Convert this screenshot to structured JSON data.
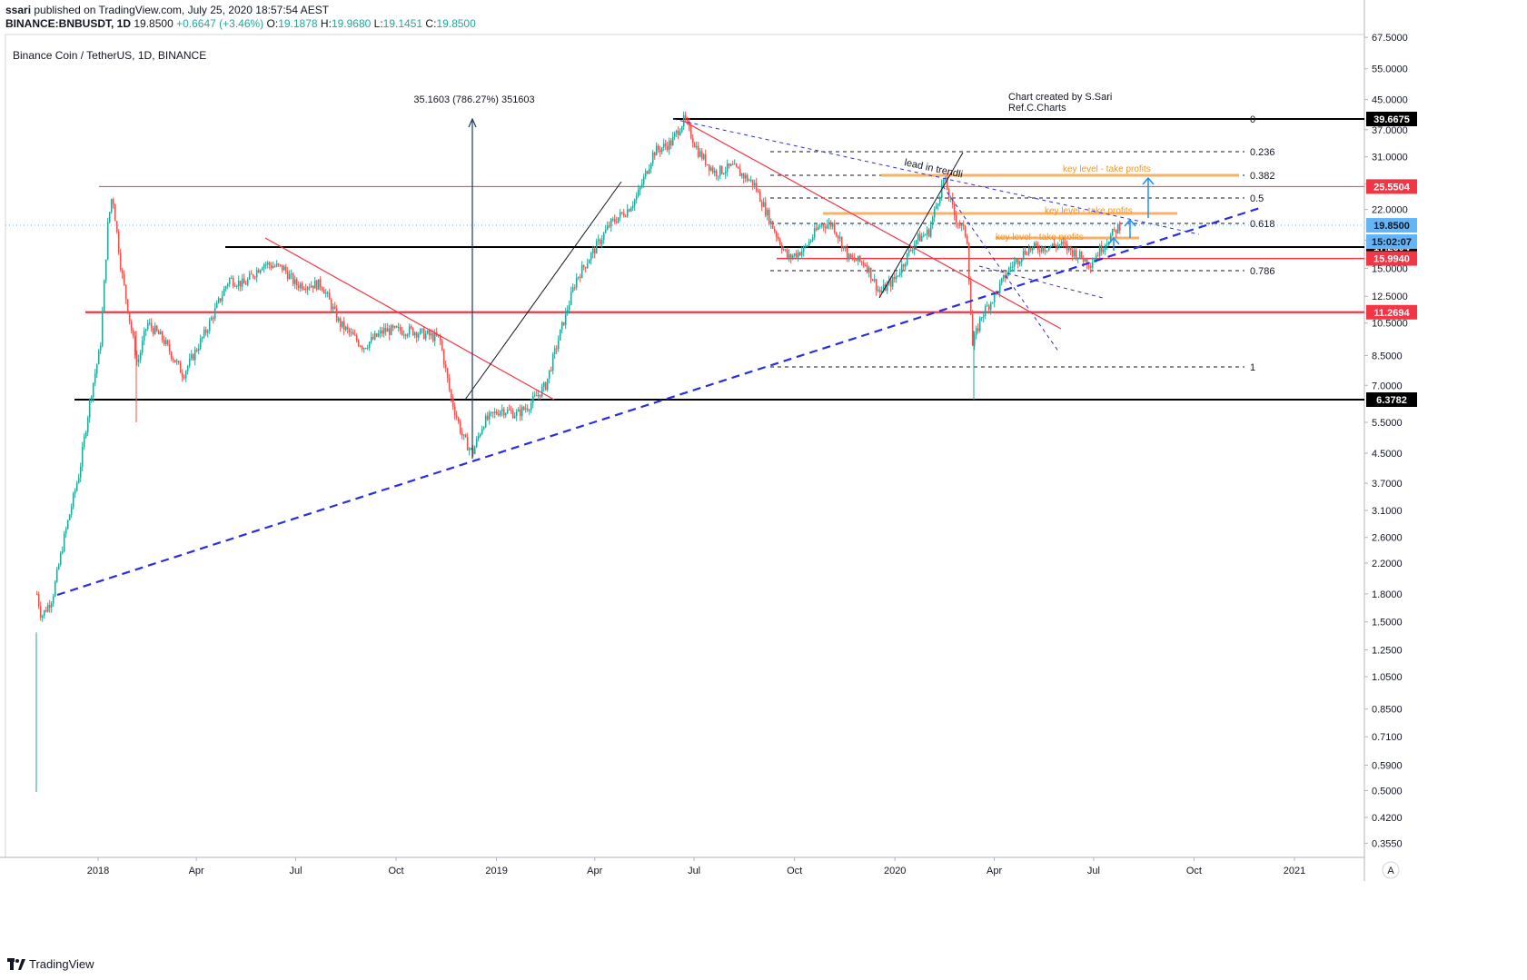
{
  "header": {
    "publisher_user": "ssari",
    "publisher_rest": " published on TradingView.com, July 25, 2020 18:57:54 AEST",
    "symbol": "BINANCE:BNBUSDT, 1D",
    "price": "19.8500",
    "change": "+0.6647 (+3.46%)",
    "open_label": "O:",
    "open": "19.1878",
    "high_label": "H:",
    "high": "19.9680",
    "low_label": "L:",
    "low": "19.1451",
    "close_label": "C:",
    "close": "19.8500"
  },
  "chart_title": "Binance Coin / TetherUS, 1D, BINANCE",
  "footer": {
    "brand": "TradingView"
  },
  "colors": {
    "up": "#26a69a",
    "down": "#ef5350",
    "red_line": "#f23645",
    "blue_trend": "#2a2ee0",
    "orange": "#f7931a",
    "blue_arrow": "#1e90ff",
    "price_tag": "#64b5f6",
    "black_tag": "#000000",
    "red_tag": "#f23645"
  },
  "chart_data": {
    "type": "candlestick",
    "scale": "log",
    "y_ticks": [
      "67.5000",
      "55.0000",
      "45.0000",
      "37.0000",
      "31.0000",
      "26.0000",
      "22.0000",
      "18.0000",
      "15.0000",
      "12.5000",
      "10.5000",
      "8.5000",
      "7.0000",
      "5.5000",
      "4.5000",
      "3.7000",
      "3.1000",
      "2.6000",
      "2.2000",
      "1.8000",
      "1.5000",
      "1.2500",
      "1.0500",
      "0.8500",
      "0.7100",
      "0.5900",
      "0.5000",
      "0.4200",
      "0.3550"
    ],
    "x_ticks": [
      "2018",
      "Apr",
      "Jul",
      "Oct",
      "2019",
      "Apr",
      "Jul",
      "Oct",
      "2020",
      "Apr",
      "Jul",
      "Oct",
      "2021"
    ],
    "x_tick_dates": [
      "2018-01-01",
      "2018-04-01",
      "2018-07-01",
      "2018-10-01",
      "2019-01-01",
      "2019-04-01",
      "2019-07-01",
      "2019-10-01",
      "2020-01-01",
      "2020-04-01",
      "2020-07-01",
      "2020-10-01",
      "2021-01-01"
    ],
    "price_trend": [
      [
        "2017-11-06",
        1.8
      ],
      [
        "2017-11-10",
        1.55
      ],
      [
        "2017-11-20",
        1.75
      ],
      [
        "2017-12-01",
        2.6
      ],
      [
        "2017-12-15",
        4.0
      ],
      [
        "2017-12-25",
        6.5
      ],
      [
        "2018-01-03",
        9.0
      ],
      [
        "2018-01-10",
        20.0
      ],
      [
        "2018-01-14",
        24.5
      ],
      [
        "2018-01-22",
        15.0
      ],
      [
        "2018-02-06",
        8.0
      ],
      [
        "2018-02-15",
        10.5
      ],
      [
        "2018-03-01",
        9.5
      ],
      [
        "2018-03-20",
        7.5
      ],
      [
        "2018-04-10",
        10.0
      ],
      [
        "2018-05-01",
        14.0
      ],
      [
        "2018-05-15",
        13.5
      ],
      [
        "2018-06-01",
        15.5
      ],
      [
        "2018-06-20",
        15.0
      ],
      [
        "2018-07-01",
        13.5
      ],
      [
        "2018-07-25",
        13.5
      ],
      [
        "2018-08-10",
        10.5
      ],
      [
        "2018-09-01",
        9.0
      ],
      [
        "2018-09-20",
        10.0
      ],
      [
        "2018-10-15",
        10.0
      ],
      [
        "2018-11-10",
        9.5
      ],
      [
        "2018-11-20",
        6.5
      ],
      [
        "2018-12-01",
        5.0
      ],
      [
        "2018-12-10",
        4.5
      ],
      [
        "2018-12-20",
        5.5
      ],
      [
        "2019-01-05",
        6.0
      ],
      [
        "2019-01-20",
        5.8
      ],
      [
        "2019-02-01",
        6.2
      ],
      [
        "2019-02-15",
        7.0
      ],
      [
        "2019-03-01",
        10.0
      ],
      [
        "2019-03-15",
        14.0
      ],
      [
        "2019-04-01",
        17.0
      ],
      [
        "2019-04-15",
        20.0
      ],
      [
        "2019-05-01",
        22.0
      ],
      [
        "2019-05-10",
        24.0
      ],
      [
        "2019-05-25",
        32.0
      ],
      [
        "2019-06-10",
        34.0
      ],
      [
        "2019-06-22",
        39.6
      ],
      [
        "2019-07-05",
        32.0
      ],
      [
        "2019-07-20",
        28.0
      ],
      [
        "2019-08-05",
        29.0
      ],
      [
        "2019-08-25",
        26.0
      ],
      [
        "2019-09-10",
        20.0
      ],
      [
        "2019-09-25",
        16.0
      ],
      [
        "2019-10-10",
        17.0
      ],
      [
        "2019-10-25",
        20.0
      ],
      [
        "2019-11-05",
        20.0
      ],
      [
        "2019-11-20",
        16.0
      ],
      [
        "2019-12-05",
        15.5
      ],
      [
        "2019-12-18",
        12.8
      ],
      [
        "2020-01-01",
        14.0
      ],
      [
        "2020-01-20",
        18.0
      ],
      [
        "2020-02-01",
        19.0
      ],
      [
        "2020-02-15",
        27.0
      ],
      [
        "2020-02-25",
        21.0
      ],
      [
        "2020-03-07",
        18.5
      ],
      [
        "2020-03-12",
        9.0
      ],
      [
        "2020-03-20",
        11.0
      ],
      [
        "2020-04-01",
        12.5
      ],
      [
        "2020-04-15",
        15.0
      ],
      [
        "2020-05-01",
        17.0
      ],
      [
        "2020-05-15",
        17.2
      ],
      [
        "2020-06-01",
        17.5
      ],
      [
        "2020-06-15",
        16.5
      ],
      [
        "2020-06-28",
        15.5
      ],
      [
        "2020-07-10",
        17.5
      ],
      [
        "2020-07-25",
        19.85
      ]
    ],
    "horizontal_levels": [
      {
        "value": 39.6675,
        "label": "39.6675",
        "color": "black"
      },
      {
        "value": 25.5504,
        "label": "25.5504",
        "color": "red"
      },
      {
        "value": 19.85,
        "label": "19.8500",
        "color": "blue-price"
      },
      {
        "value": 17.2304,
        "label": "17.2304",
        "color": "black"
      },
      {
        "value": 15.994,
        "label": "15.9940",
        "color": "red"
      },
      {
        "value": 11.2694,
        "label": "11.2694",
        "color": "red"
      },
      {
        "value": 6.3782,
        "label": "6.3782",
        "color": "black"
      }
    ],
    "countdown": "15:02:07",
    "fib_labels": [
      "0",
      "0.236",
      "0.382",
      "0.5",
      "0.618",
      "0.786",
      "1"
    ],
    "measure_note": "35.1603 (786.27%) 351603",
    "author_note_line1": "Chart created by S.Sari",
    "author_note_line2": "Ref.C.Charts",
    "trend_note": "lead in trendli",
    "key_level_label": "key level - take profits"
  }
}
